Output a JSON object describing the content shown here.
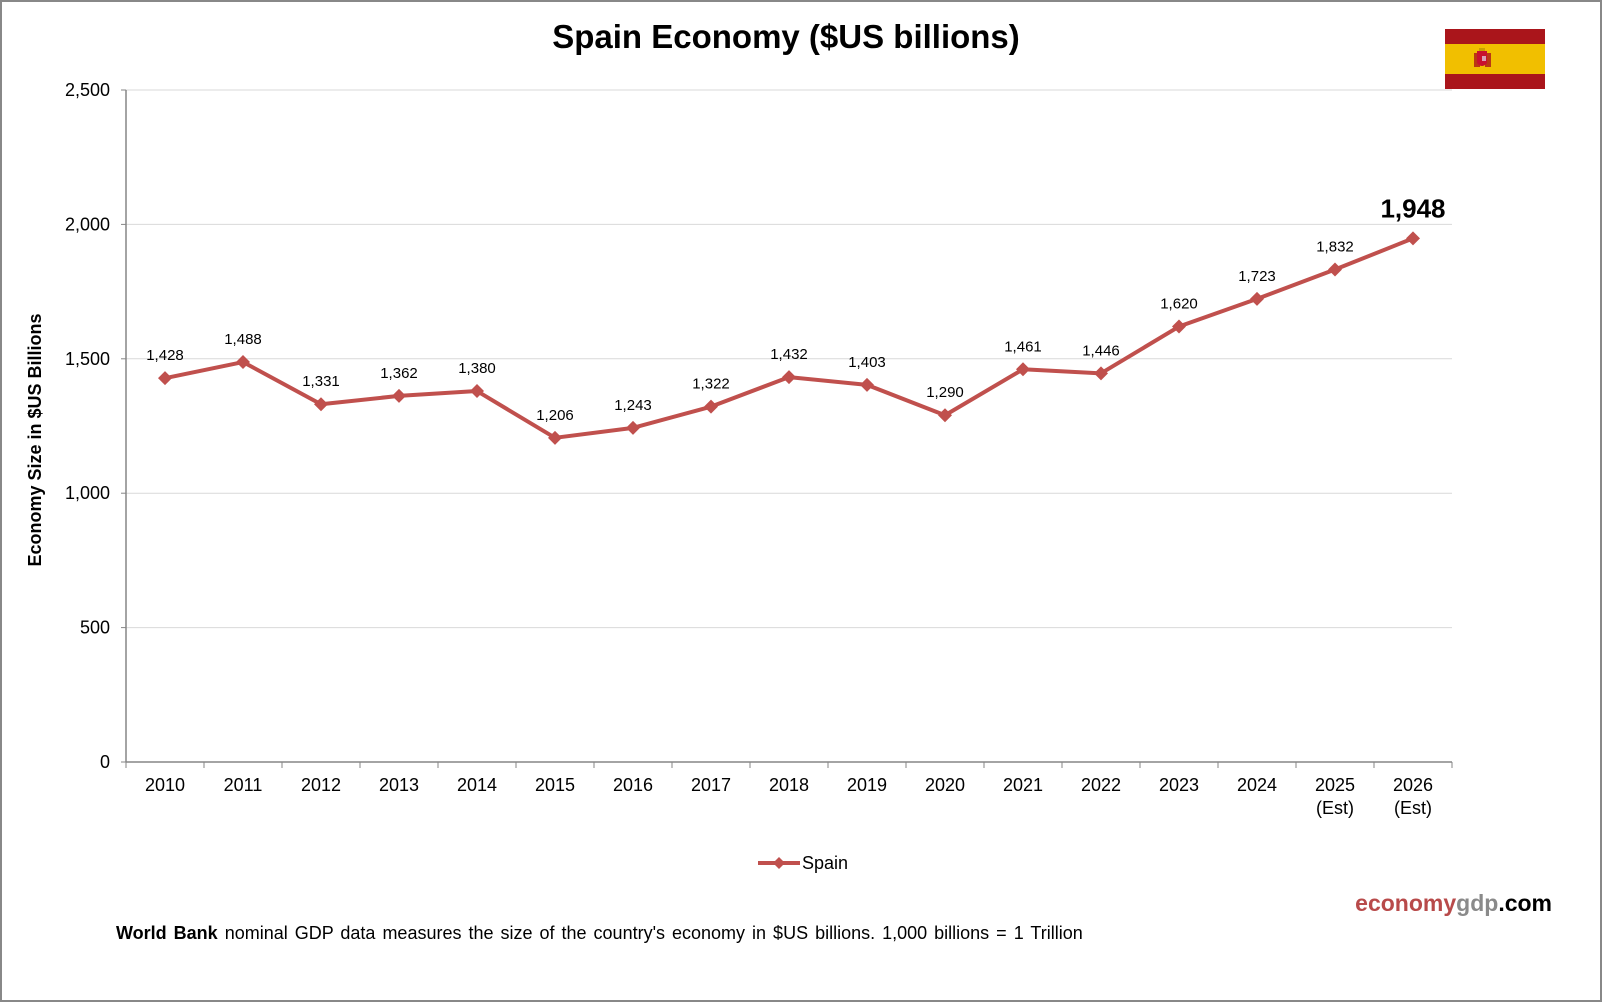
{
  "colors": {
    "series": "#c0504d",
    "grid": "#d9d9d9",
    "axis": "#868686",
    "brand_red": "#b84a4a",
    "brand_grey": "#8a8a8a",
    "flag_red": "#aa151b",
    "flag_yellow": "#f1bf00"
  },
  "flag": {
    "country": "Spain",
    "icon": "spain-flag-icon"
  },
  "brand": {
    "part1": "economy",
    "part2": "gdp",
    "part3": ".com"
  },
  "footnote": {
    "bold": "World Bank",
    "text": " nominal GDP data  measures the size of the country's economy in $US billions. 1,000 billions = 1 Trillion"
  },
  "legend": {
    "items": [
      {
        "name": "Spain",
        "icon": "line-diamond-marker-icon"
      }
    ],
    "placement": "bottom-center"
  },
  "chart_data": {
    "type": "line",
    "title": "Spain Economy ($US billions)",
    "xlabel": "",
    "ylabel": "Economy Size in $US Billions",
    "ylim": [
      0,
      2500
    ],
    "yticks": [
      0,
      500,
      1000,
      1500,
      2000,
      2500
    ],
    "ytick_labels": [
      "0",
      "500",
      "1,000",
      "1,500",
      "2,000",
      "2,500"
    ],
    "grid": true,
    "categories": [
      "2010",
      "2011",
      "2012",
      "2013",
      "2014",
      "2015",
      "2016",
      "2017",
      "2018",
      "2019",
      "2020",
      "2021",
      "2022",
      "2023",
      "2024",
      "2025 (Est)",
      "2026 (Est)"
    ],
    "category_lines": [
      [
        "2010"
      ],
      [
        "2011"
      ],
      [
        "2012"
      ],
      [
        "2013"
      ],
      [
        "2014"
      ],
      [
        "2015"
      ],
      [
        "2016"
      ],
      [
        "2017"
      ],
      [
        "2018"
      ],
      [
        "2019"
      ],
      [
        "2020"
      ],
      [
        "2021"
      ],
      [
        "2022"
      ],
      [
        "2023"
      ],
      [
        "2024"
      ],
      [
        "2025",
        "(Est)"
      ],
      [
        "2026",
        "(Est)"
      ]
    ],
    "series": [
      {
        "name": "Spain",
        "values": [
          1428,
          1488,
          1331,
          1362,
          1380,
          1206,
          1243,
          1322,
          1432,
          1403,
          1290,
          1461,
          1446,
          1620,
          1723,
          1832,
          1948
        ],
        "labels": [
          "1,428",
          "1,488",
          "1,331",
          "1,362",
          "1,380",
          "1,206",
          "1,243",
          "1,322",
          "1,432",
          "1,403",
          "1,290",
          "1,461",
          "1,446",
          "1,620",
          "1,723",
          "1,832",
          "1,948"
        ],
        "highlight_last": true
      }
    ],
    "legend": "bottom-center"
  }
}
